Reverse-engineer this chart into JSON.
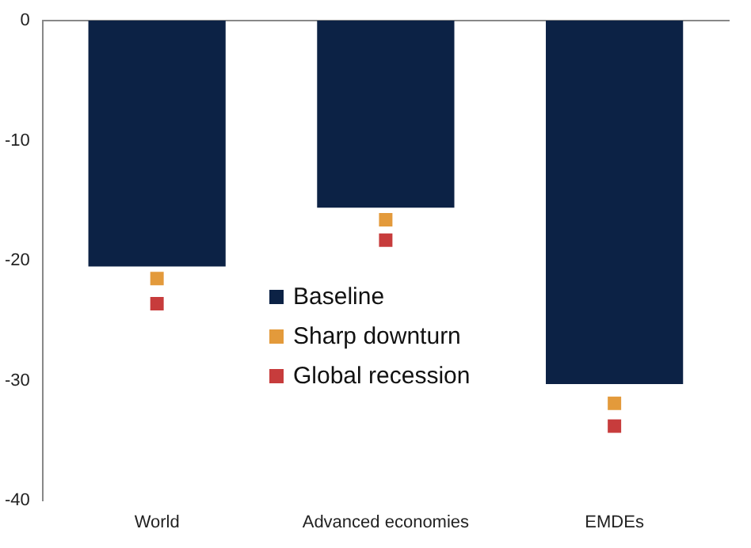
{
  "chart_data": {
    "type": "bar",
    "categories": [
      "World",
      "Advanced economies",
      "EMDEs"
    ],
    "series": [
      {
        "name": "Baseline",
        "color": "#0c2245",
        "values": [
          -20.5,
          -15.6,
          -30.3
        ]
      },
      {
        "name": "Sharp downturn",
        "type": "scatter",
        "color": "#e39a3b",
        "x": [
          "World",
          "Advanced economies",
          "EMDEs"
        ],
        "values": [
          -21.5,
          -16.6,
          -31.9
        ]
      },
      {
        "name": "Global recession",
        "type": "scatter",
        "color": "#c73c3c",
        "x": [
          "World",
          "Advanced economies",
          "EMDEs"
        ],
        "values": [
          -23.6,
          -18.3,
          -33.8
        ]
      }
    ],
    "ylim": [
      -40,
      0
    ],
    "yticks": [
      -40,
      -30,
      -20,
      -10,
      0
    ],
    "grid": false,
    "legend": "center",
    "marker": "square"
  }
}
